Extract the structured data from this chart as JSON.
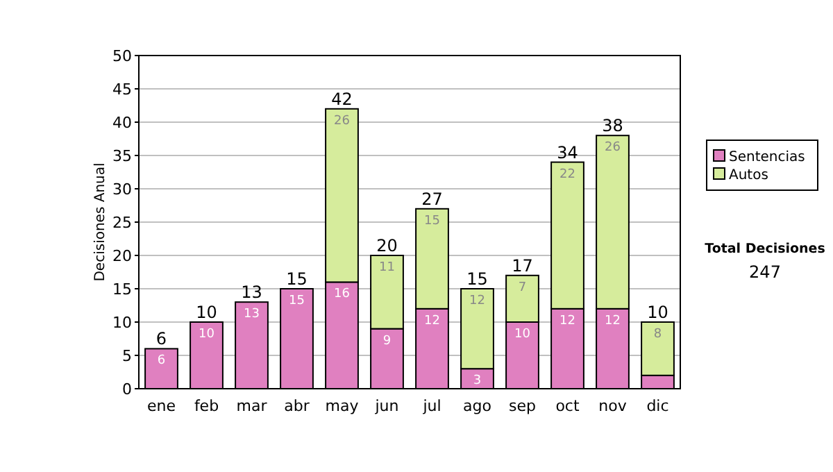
{
  "chart_data": {
    "type": "bar",
    "stacked": true,
    "ylabel": "Decisiones Anual",
    "categories": [
      "ene",
      "feb",
      "mar",
      "abr",
      "may",
      "jun",
      "jul",
      "ago",
      "sep",
      "oct",
      "nov",
      "dic"
    ],
    "series": [
      {
        "name": "Sentencias",
        "color": "#e080c0",
        "values": [
          6,
          10,
          13,
          15,
          16,
          9,
          12,
          3,
          10,
          12,
          12,
          2
        ],
        "value_labels": [
          "6",
          "10",
          "13",
          "15",
          "16",
          "9",
          "12",
          "3",
          "10",
          "12",
          "12",
          null
        ]
      },
      {
        "name": "Autos",
        "color": "#d6ec9c",
        "values": [
          0,
          0,
          0,
          0,
          26,
          11,
          15,
          12,
          7,
          22,
          26,
          8
        ],
        "value_labels": [
          null,
          null,
          null,
          null,
          "26",
          "11",
          "15",
          "12",
          "7",
          "22",
          "26",
          "8"
        ]
      }
    ],
    "totals": [
      "6",
      "10",
      "13",
      "15",
      "42",
      "20",
      "27",
      "15",
      "17",
      "34",
      "38",
      "10"
    ],
    "ylim": [
      0,
      50
    ],
    "yticks": [
      0,
      5,
      10,
      15,
      20,
      25,
      30,
      35,
      40,
      45,
      50
    ],
    "grid": "y",
    "legend": "right",
    "annotations": [
      "Total Decisiones",
      "247"
    ]
  }
}
